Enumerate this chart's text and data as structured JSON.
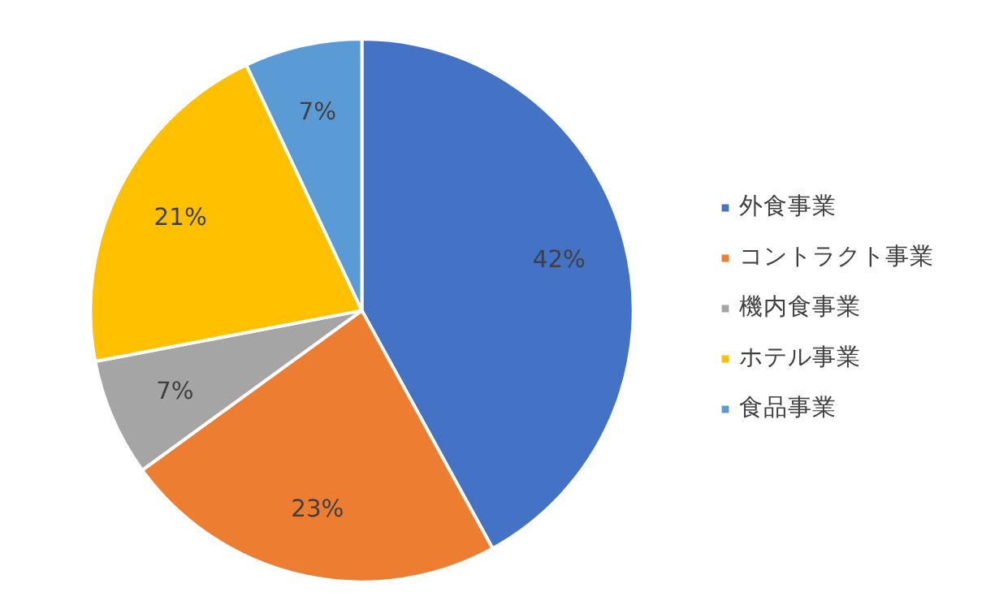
{
  "chart_data": {
    "type": "pie",
    "categories": [
      "外食事業",
      "コントラクト事業",
      "機内食事業",
      "ホテル事業",
      "食品事業"
    ],
    "values": [
      42,
      23,
      7,
      21,
      7
    ],
    "colors": [
      "#4472c4",
      "#ed7d31",
      "#a5a5a5",
      "#ffc000",
      "#5b9bd5"
    ],
    "value_labels": [
      "42%",
      "23%",
      "7%",
      "21%",
      "7%"
    ],
    "legend": "right"
  }
}
